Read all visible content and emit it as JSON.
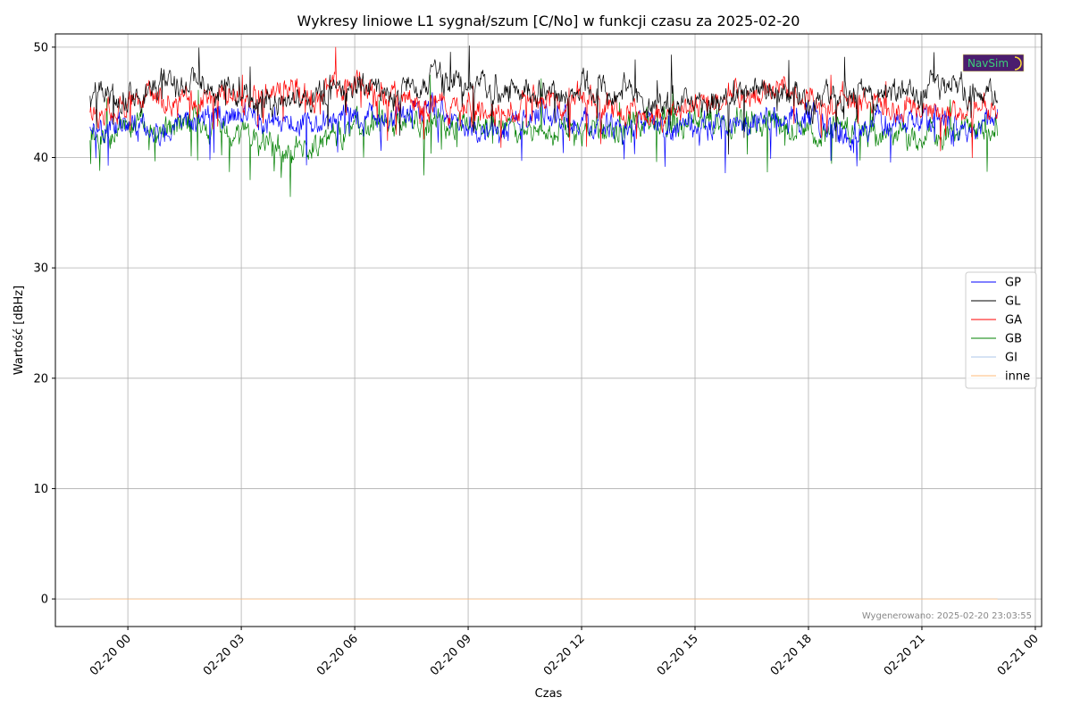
{
  "chart_data": {
    "type": "line",
    "title": "Wykresy liniowe L1 sygnał/szum [C/No] w funkcji czasu za 2025-02-20",
    "xlabel": "Czas",
    "ylabel": "Wartość [dBHz]",
    "grid": true,
    "legend_position": "right",
    "x_range": [
      "2025-02-19T22:05",
      "2025-02-21T00:10"
    ],
    "y_range": [
      -2.5,
      51.2
    ],
    "x_ticks": [
      {
        "t": "2025-02-20T00:00",
        "label": "02-20 00"
      },
      {
        "t": "2025-02-20T03:00",
        "label": "02-20 03"
      },
      {
        "t": "2025-02-20T06:00",
        "label": "02-20 06"
      },
      {
        "t": "2025-02-20T09:00",
        "label": "02-20 09"
      },
      {
        "t": "2025-02-20T12:00",
        "label": "02-20 12"
      },
      {
        "t": "2025-02-20T15:00",
        "label": "02-20 15"
      },
      {
        "t": "2025-02-20T18:00",
        "label": "02-20 18"
      },
      {
        "t": "2025-02-20T21:00",
        "label": "02-20 21"
      },
      {
        "t": "2025-02-21T00:00",
        "label": "02-21 00"
      }
    ],
    "y_ticks": [
      0,
      10,
      20,
      30,
      40,
      50
    ],
    "series": [
      {
        "name": "GP",
        "color": "#0000ff",
        "x": [
          "2025-02-19T23:00",
          "2025-02-20T00:00",
          "2025-02-20T01:00",
          "2025-02-20T02:00",
          "2025-02-20T03:00",
          "2025-02-20T04:00",
          "2025-02-20T05:00",
          "2025-02-20T06:00",
          "2025-02-20T07:00",
          "2025-02-20T08:00",
          "2025-02-20T09:00",
          "2025-02-20T10:00",
          "2025-02-20T11:00",
          "2025-02-20T12:00",
          "2025-02-20T13:00",
          "2025-02-20T14:00",
          "2025-02-20T15:00",
          "2025-02-20T16:00",
          "2025-02-20T17:00",
          "2025-02-20T18:00",
          "2025-02-20T19:00",
          "2025-02-20T20:00",
          "2025-02-20T21:00",
          "2025-02-20T22:00",
          "2025-02-20T23:00"
        ],
        "y": [
          43.5,
          42.5,
          42.0,
          43.5,
          44.0,
          43.0,
          43.5,
          43.5,
          43.5,
          44.5,
          42.5,
          42.5,
          44.0,
          43.5,
          42.5,
          43.0,
          42.5,
          43.0,
          43.5,
          44.0,
          41.5,
          43.0,
          43.5,
          42.5,
          43.5
        ]
      },
      {
        "name": "GL",
        "color": "#000000",
        "x": [
          "2025-02-19T23:00",
          "2025-02-20T00:00",
          "2025-02-20T01:00",
          "2025-02-20T02:00",
          "2025-02-20T03:00",
          "2025-02-20T04:00",
          "2025-02-20T05:00",
          "2025-02-20T06:00",
          "2025-02-20T07:00",
          "2025-02-20T08:00",
          "2025-02-20T09:00",
          "2025-02-20T10:00",
          "2025-02-20T11:00",
          "2025-02-20T12:00",
          "2025-02-20T13:00",
          "2025-02-20T14:00",
          "2025-02-20T15:00",
          "2025-02-20T16:00",
          "2025-02-20T17:00",
          "2025-02-20T18:00",
          "2025-02-20T19:00",
          "2025-02-20T20:00",
          "2025-02-20T21:00",
          "2025-02-20T22:00",
          "2025-02-20T23:00"
        ],
        "y": [
          45.5,
          45.5,
          46.5,
          47.0,
          45.5,
          45.0,
          45.5,
          46.5,
          46.0,
          47.5,
          46.5,
          46.0,
          45.5,
          46.5,
          46.0,
          45.0,
          45.0,
          45.5,
          46.0,
          45.0,
          45.5,
          46.0,
          46.0,
          46.0,
          46.0
        ]
      },
      {
        "name": "GA",
        "color": "#ff0000",
        "x": [
          "2025-02-19T23:00",
          "2025-02-20T00:00",
          "2025-02-20T01:00",
          "2025-02-20T02:00",
          "2025-02-20T03:00",
          "2025-02-20T04:00",
          "2025-02-20T05:00",
          "2025-02-20T06:00",
          "2025-02-20T07:00",
          "2025-02-20T08:00",
          "2025-02-20T09:00",
          "2025-02-20T10:00",
          "2025-02-20T11:00",
          "2025-02-20T12:00",
          "2025-02-20T13:00",
          "2025-02-20T14:00",
          "2025-02-20T15:00",
          "2025-02-20T16:00",
          "2025-02-20T17:00",
          "2025-02-20T18:00",
          "2025-02-20T19:00",
          "2025-02-20T20:00",
          "2025-02-20T21:00",
          "2025-02-20T22:00",
          "2025-02-20T23:00"
        ],
        "y": [
          44.0,
          44.5,
          45.5,
          45.0,
          45.0,
          46.0,
          46.0,
          46.5,
          45.5,
          45.0,
          44.5,
          44.0,
          45.0,
          45.5,
          44.5,
          44.0,
          44.5,
          45.5,
          46.0,
          45.5,
          45.0,
          44.5,
          44.0,
          44.0,
          45.0
        ]
      },
      {
        "name": "GB",
        "color": "#008000",
        "x": [
          "2025-02-19T23:00",
          "2025-02-20T00:00",
          "2025-02-20T01:00",
          "2025-02-20T02:00",
          "2025-02-20T03:00",
          "2025-02-20T04:00",
          "2025-02-20T05:00",
          "2025-02-20T06:00",
          "2025-02-20T07:00",
          "2025-02-20T08:00",
          "2025-02-20T09:00",
          "2025-02-20T10:00",
          "2025-02-20T11:00",
          "2025-02-20T12:00",
          "2025-02-20T13:00",
          "2025-02-20T14:00",
          "2025-02-20T15:00",
          "2025-02-20T16:00",
          "2025-02-20T17:00",
          "2025-02-20T18:00",
          "2025-02-20T19:00",
          "2025-02-20T20:00",
          "2025-02-20T21:00",
          "2025-02-20T22:00",
          "2025-02-20T23:00"
        ],
        "y": [
          41.5,
          43.0,
          42.5,
          43.0,
          42.0,
          41.0,
          40.5,
          43.0,
          42.5,
          43.0,
          43.0,
          42.5,
          42.0,
          42.5,
          43.0,
          43.0,
          43.5,
          43.5,
          43.0,
          42.5,
          42.5,
          42.0,
          42.0,
          42.5,
          42.5
        ]
      },
      {
        "name": "GI",
        "color": "#aec7e8",
        "x": [
          "2025-02-19T23:00",
          "2025-02-20T23:00"
        ],
        "y": [
          0,
          0
        ]
      },
      {
        "name": "inne",
        "color": "#ffbb78",
        "x": [
          "2025-02-19T23:00",
          "2025-02-20T23:00"
        ],
        "y": [
          0,
          0
        ]
      }
    ]
  },
  "logo_text": "NavSim",
  "footer": {
    "generated": "Wygenerowano: 2025-02-20 23:03:55"
  }
}
